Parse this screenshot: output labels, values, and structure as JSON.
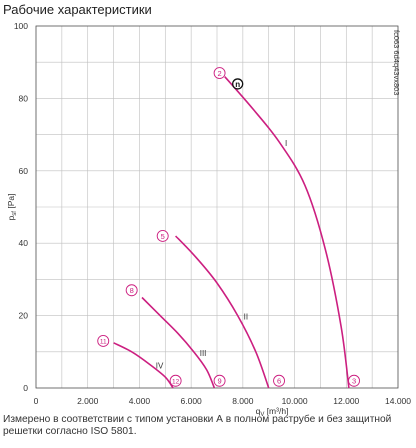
{
  "chart_data": {
    "type": "line",
    "title": "Рабочие характеристики",
    "xlabel": "q",
    "xlabel_sub": "V",
    "xlabel_unit": "[m³/h]",
    "ylabel": "p",
    "ylabel_sub": "sf",
    "ylabel_unit": "[Pa]",
    "xlim": [
      0,
      14000
    ],
    "ylim": [
      0,
      100
    ],
    "x_ticks": [
      0,
      2000,
      4000,
      6000,
      8000,
      10000,
      12000,
      14000
    ],
    "x_tick_labels": [
      "0",
      "2.000",
      "4.000",
      "6.000",
      "8.000",
      "10.000",
      "12.000",
      "14.000"
    ],
    "y_ticks": [
      0,
      20,
      40,
      60,
      80,
      100
    ],
    "y_tick_labels": [
      "0",
      "20",
      "40",
      "60",
      "80",
      "100"
    ],
    "grid": true,
    "series": [
      {
        "name": "I",
        "x": [
          7300,
          8400,
          9400,
          10400,
          11200,
          11800,
          12100
        ],
        "y": [
          86,
          77,
          68,
          56,
          38,
          17,
          0
        ]
      },
      {
        "name": "II",
        "x": [
          5400,
          6200,
          7000,
          7800,
          8500,
          9000
        ],
        "y": [
          42,
          36,
          29,
          20,
          10,
          0
        ]
      },
      {
        "name": "III",
        "x": [
          4100,
          4800,
          5500,
          6100,
          6600,
          6900
        ],
        "y": [
          25,
          20,
          15,
          10,
          5,
          0
        ]
      },
      {
        "name": "IV",
        "x": [
          3000,
          3700,
          4400,
          5000,
          5300
        ],
        "y": [
          12.5,
          10,
          6.5,
          3,
          0
        ]
      }
    ],
    "markers": [
      {
        "label": "2",
        "x": 7100,
        "y": 87
      },
      {
        "label": "5",
        "x": 4900,
        "y": 42
      },
      {
        "label": "8",
        "x": 3700,
        "y": 27
      },
      {
        "label": "11",
        "x": 2600,
        "y": 13
      },
      {
        "label": "12",
        "x": 5400,
        "y": 2
      },
      {
        "label": "9",
        "x": 7100,
        "y": 2
      },
      {
        "label": "6",
        "x": 9400,
        "y": 2
      },
      {
        "label": "3",
        "x": 12300,
        "y": 2
      }
    ],
    "operating_point": {
      "label": "n",
      "x": 7800,
      "y": 84
    },
    "side_code": "fc063 6d4q43vx803",
    "footnote": "Измерено в соответствии с типом установки А в полном раструбе и без защитной решетки согласно ISO 5801.",
    "colors": {
      "curve": "#cc1f80",
      "grid": "#bfbfbf",
      "axis": "#555555"
    }
  }
}
